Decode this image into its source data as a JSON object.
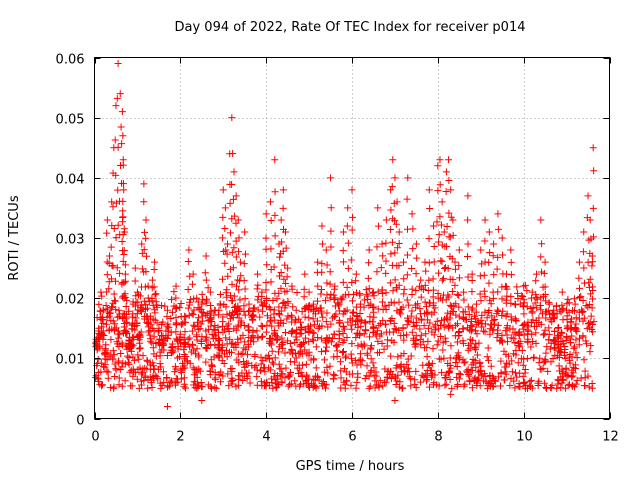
{
  "chart_data": {
    "type": "scatter",
    "title": "Day 094 of 2022, Rate Of TEC Index for receiver p014",
    "xlabel": "GPS time / hours",
    "ylabel": "ROTI / TECUs",
    "xlim": [
      0,
      12
    ],
    "ylim": [
      0,
      0.06
    ],
    "x_ticks": [
      0,
      2,
      4,
      6,
      8,
      10,
      12
    ],
    "y_ticks": [
      0,
      0.01,
      0.02,
      0.03,
      0.04,
      0.05,
      0.06
    ],
    "x_tick_labels": [
      "0",
      "2",
      "4",
      "6",
      "8",
      "10",
      "12"
    ],
    "y_tick_labels": [
      "0",
      "0.01",
      "0.02",
      "0.03",
      "0.04",
      "0.05",
      "0.06"
    ],
    "grid": true,
    "marker": "+",
    "color": "#ff0000",
    "series": [
      {
        "name": "ROTI",
        "x": [
          0.05,
          0.1,
          0.15,
          0.2,
          0.25,
          0.3,
          0.35,
          0.4,
          0.45,
          0.5,
          0.55,
          0.6,
          0.65,
          0.66,
          0.67,
          0.68,
          0.7,
          0.72,
          0.75,
          0.8,
          0.85,
          0.9,
          0.95,
          1.0,
          1.05,
          1.1,
          1.15,
          1.2,
          1.25,
          1.3,
          1.35,
          1.4,
          1.5,
          1.6,
          1.7,
          1.8,
          1.9,
          2.0,
          2.1,
          2.2,
          2.3,
          2.4,
          2.5,
          2.6,
          2.7,
          2.8,
          2.9,
          3.0,
          3.05,
          3.1,
          3.15,
          3.2,
          3.25,
          3.3,
          3.35,
          3.4,
          3.5,
          3.6,
          3.7,
          3.8,
          3.9,
          4.0,
          4.1,
          4.2,
          4.3,
          4.35,
          4.4,
          4.45,
          4.5,
          4.6,
          4.7,
          4.8,
          4.9,
          5.0,
          5.1,
          5.2,
          5.3,
          5.4,
          5.5,
          5.6,
          5.7,
          5.8,
          5.9,
          6.0,
          6.1,
          6.2,
          6.3,
          6.4,
          6.5,
          6.6,
          6.7,
          6.8,
          6.9,
          6.95,
          7.0,
          7.05,
          7.1,
          7.2,
          7.3,
          7.4,
          7.5,
          7.6,
          7.7,
          7.8,
          7.9,
          8.0,
          8.05,
          8.1,
          8.15,
          8.2,
          8.25,
          8.3,
          8.35,
          8.4,
          8.5,
          8.6,
          8.7,
          8.8,
          8.9,
          9.0,
          9.1,
          9.2,
          9.3,
          9.4,
          9.5,
          9.6,
          9.7,
          9.8,
          9.9,
          10.0,
          10.1,
          10.2,
          10.3,
          10.4,
          10.5,
          10.6,
          10.7,
          10.8,
          10.9,
          11.0,
          11.1,
          11.2,
          11.3,
          11.4,
          11.5,
          11.55,
          11.6,
          11.62
        ],
        "y": [
          0.012,
          0.015,
          0.021,
          0.018,
          0.009,
          0.033,
          0.027,
          0.036,
          0.045,
          0.052,
          0.059,
          0.054,
          0.051,
          0.047,
          0.043,
          0.038,
          0.031,
          0.024,
          0.016,
          0.013,
          0.012,
          0.019,
          0.025,
          0.021,
          0.014,
          0.029,
          0.039,
          0.033,
          0.022,
          0.017,
          0.023,
          0.026,
          0.015,
          0.013,
          0.018,
          0.011,
          0.022,
          0.014,
          0.017,
          0.028,
          0.024,
          0.016,
          0.019,
          0.027,
          0.021,
          0.018,
          0.013,
          0.038,
          0.035,
          0.029,
          0.044,
          0.05,
          0.041,
          0.037,
          0.033,
          0.026,
          0.031,
          0.019,
          0.017,
          0.024,
          0.021,
          0.034,
          0.036,
          0.043,
          0.029,
          0.033,
          0.038,
          0.031,
          0.025,
          0.022,
          0.018,
          0.016,
          0.024,
          0.021,
          0.019,
          0.026,
          0.032,
          0.028,
          0.04,
          0.022,
          0.019,
          0.031,
          0.035,
          0.038,
          0.024,
          0.019,
          0.016,
          0.028,
          0.021,
          0.035,
          0.029,
          0.033,
          0.038,
          0.043,
          0.04,
          0.036,
          0.031,
          0.026,
          0.04,
          0.034,
          0.029,
          0.023,
          0.026,
          0.038,
          0.032,
          0.042,
          0.043,
          0.036,
          0.031,
          0.041,
          0.043,
          0.038,
          0.033,
          0.026,
          0.028,
          0.021,
          0.037,
          0.024,
          0.019,
          0.028,
          0.033,
          0.031,
          0.029,
          0.034,
          0.03,
          0.024,
          0.028,
          0.019,
          0.014,
          0.022,
          0.016,
          0.021,
          0.024,
          0.033,
          0.026,
          0.019,
          0.018,
          0.015,
          0.021,
          0.018,
          0.016,
          0.019,
          0.026,
          0.031,
          0.037,
          0.033,
          0.027,
          0.045
        ],
        "baseline_band": [
          0.005,
          0.02
        ],
        "min_values": [
          0.002,
          0.003,
          0.003,
          0.004
        ]
      }
    ]
  }
}
